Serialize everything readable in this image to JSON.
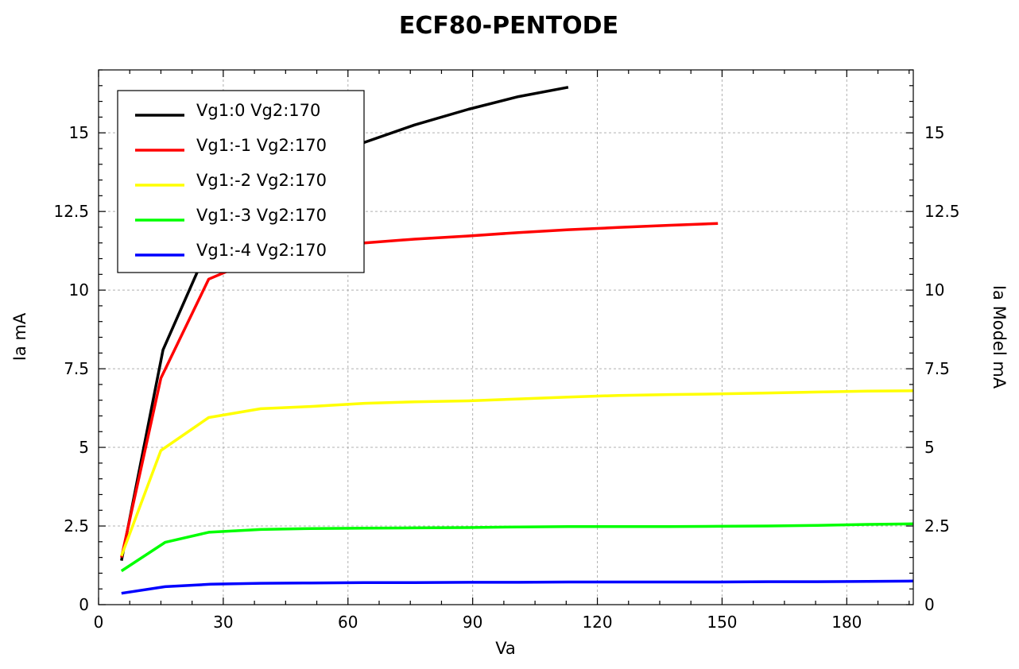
{
  "chart_data": {
    "type": "line",
    "title": "ECF80-PENTODE",
    "xlabel": "Va",
    "ylabel": "Ia mA",
    "ylabel_right": "Ia Model mA",
    "xlim": [
      0,
      196
    ],
    "ylim": [
      0,
      17
    ],
    "x_ticks": [
      0,
      30,
      60,
      90,
      120,
      150,
      180
    ],
    "x_tick_labels": [
      "0",
      "30",
      "60",
      "90",
      "120",
      "150",
      "180"
    ],
    "y_ticks": [
      0,
      2.5,
      5,
      7.5,
      10,
      12.5,
      15
    ],
    "y_tick_labels": [
      "0",
      "2.5",
      "5",
      "7.5",
      "10",
      "12.5",
      "15"
    ],
    "grid": true,
    "legend_position": "top-left",
    "series": [
      {
        "name": "Vg1:0 Vg2:170",
        "color": "#000000",
        "x": [
          5.5,
          15.5,
          27,
          39,
          51,
          64,
          76,
          89,
          101,
          113
        ],
        "y": [
          1.4,
          8.1,
          11.55,
          13.1,
          13.95,
          14.7,
          15.25,
          15.75,
          16.15,
          16.45
        ]
      },
      {
        "name": "Vg1:-1 Vg2:170",
        "color": "#ff0000",
        "x": [
          5.5,
          15,
          26.5,
          39,
          51,
          64,
          76,
          89,
          101,
          113,
          125,
          137,
          149
        ],
        "y": [
          1.5,
          7.2,
          10.35,
          11.05,
          11.35,
          11.5,
          11.62,
          11.72,
          11.83,
          11.92,
          11.99,
          12.06,
          12.12
        ]
      },
      {
        "name": "Vg1:-2 Vg2:170",
        "color": "#ffff00",
        "x": [
          5.5,
          15,
          26.5,
          39,
          51,
          64,
          76,
          89,
          101,
          113,
          125,
          137,
          149,
          161,
          173,
          185,
          196
        ],
        "y": [
          1.55,
          4.9,
          5.95,
          6.23,
          6.3,
          6.4,
          6.45,
          6.48,
          6.54,
          6.6,
          6.65,
          6.68,
          6.7,
          6.73,
          6.76,
          6.79,
          6.8
        ]
      },
      {
        "name": "Vg1:-3 Vg2:170",
        "color": "#00ff00",
        "x": [
          5.5,
          16,
          26.5,
          39,
          51,
          64,
          76,
          89,
          101,
          113,
          125,
          137,
          149,
          161,
          173,
          185,
          196
        ],
        "y": [
          1.07,
          1.98,
          2.3,
          2.39,
          2.42,
          2.43,
          2.44,
          2.45,
          2.47,
          2.48,
          2.48,
          2.48,
          2.49,
          2.5,
          2.52,
          2.55,
          2.57
        ]
      },
      {
        "name": "Vg1:-4 Vg2:170",
        "color": "#0000ff",
        "x": [
          5.5,
          16,
          27,
          39,
          51,
          64,
          76,
          89,
          101,
          113,
          125,
          137,
          149,
          161,
          173,
          185,
          196
        ],
        "y": [
          0.36,
          0.57,
          0.65,
          0.68,
          0.69,
          0.7,
          0.7,
          0.71,
          0.71,
          0.72,
          0.72,
          0.72,
          0.72,
          0.73,
          0.73,
          0.74,
          0.75
        ]
      }
    ]
  }
}
